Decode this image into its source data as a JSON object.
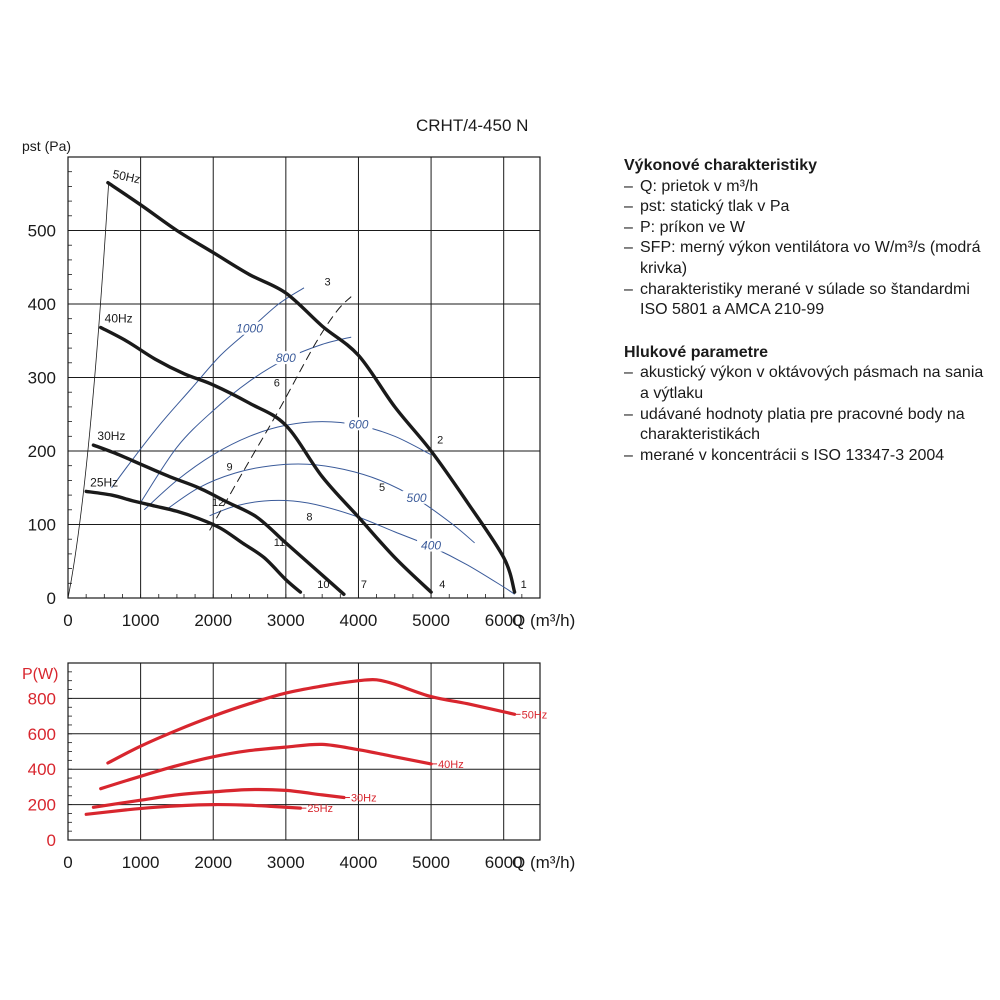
{
  "model": "CRHT/4-450 N",
  "colors": {
    "curve": "#1a1a1a",
    "sfp": "#3b5b9a",
    "power": "#d8262e",
    "grid": "#1a1a1a"
  },
  "notes": {
    "performance_title": "Výkonové charakteristiky",
    "performance_items": [
      "Q: prietok v m³/h",
      "pst: statický tlak v Pa",
      "P: príkon ve W",
      "SFP: merný výkon ventilátora vo W/m³/s (modrá krivka)",
      "charakteristiky merané v súlade so štandardmi ISO 5801 a AMCA 210-99"
    ],
    "noise_title": "Hlukové parametre",
    "noise_items": [
      "akustický výkon v oktávových pásmach na sania a výtlaku",
      "udávané hodnoty platia pre pracovné body na charakteristikách",
      "merané v koncentrácii s ISO 13347-3 2004"
    ]
  },
  "chart_data": [
    {
      "type": "line",
      "ylabel": "pst (Pa)",
      "xlabel": "Q (m³/h)",
      "xlim": [
        0,
        6500
      ],
      "ylim": [
        0,
        600
      ],
      "xticks": [
        0,
        1000,
        2000,
        3000,
        4000,
        5000,
        6000
      ],
      "yticks": [
        0,
        100,
        200,
        300,
        400,
        500
      ],
      "grid": true,
      "series": [
        {
          "name": "50Hz",
          "x": [
            550,
            1000,
            1500,
            2000,
            2500,
            3000,
            3500,
            4000,
            4500,
            5000,
            5500,
            6000,
            6150
          ],
          "y": [
            565,
            535,
            500,
            470,
            440,
            415,
            370,
            330,
            260,
            200,
            130,
            55,
            8
          ]
        },
        {
          "name": "40Hz",
          "x": [
            450,
            800,
            1200,
            1600,
            2000,
            2500,
            3000,
            3500,
            4000,
            4500,
            5000
          ],
          "y": [
            368,
            350,
            325,
            305,
            290,
            265,
            235,
            165,
            110,
            55,
            8
          ]
        },
        {
          "name": "30Hz",
          "x": [
            350,
            700,
            1000,
            1400,
            1800,
            2200,
            2600,
            3000,
            3400,
            3800
          ],
          "y": [
            208,
            195,
            182,
            165,
            150,
            130,
            110,
            75,
            40,
            5
          ]
        },
        {
          "name": "25Hz",
          "x": [
            250,
            600,
            900,
            1200,
            1500,
            1800,
            2100,
            2400,
            2700,
            3000,
            3200
          ],
          "y": [
            145,
            140,
            132,
            125,
            118,
            108,
            95,
            75,
            55,
            25,
            8
          ]
        }
      ],
      "sfp_curves": [
        {
          "label": "1000",
          "x": [
            600,
            900,
            1300,
            1700,
            2100,
            2500,
            2900,
            3250
          ],
          "y": [
            150,
            190,
            240,
            285,
            330,
            365,
            400,
            422
          ]
        },
        {
          "label": "800",
          "x": [
            1000,
            1500,
            2000,
            2500,
            3000,
            3500,
            3900
          ],
          "y": [
            130,
            205,
            255,
            295,
            325,
            345,
            355
          ]
        },
        {
          "label": "600",
          "x": [
            1050,
            1500,
            2000,
            2500,
            3000,
            3500,
            4000,
            4500,
            5000
          ],
          "y": [
            120,
            160,
            195,
            220,
            235,
            240,
            235,
            220,
            195
          ]
        },
        {
          "label": "500",
          "x": [
            1350,
            1800,
            2300,
            2800,
            3300,
            3800,
            4300,
            4800,
            5300,
            5600
          ],
          "y": [
            120,
            150,
            170,
            180,
            182,
            175,
            160,
            135,
            100,
            75
          ]
        },
        {
          "label": "400",
          "x": [
            1950,
            2300,
            2700,
            3100,
            3500,
            4000,
            4500,
            5000,
            5500,
            6000,
            6150
          ],
          "y": [
            112,
            125,
            132,
            132,
            125,
            110,
            90,
            70,
            45,
            15,
            5
          ]
        }
      ],
      "system_curve": {
        "x": [
          1950,
          2400,
          2900,
          3400,
          3700,
          3900
        ],
        "y": [
          92,
          170,
          255,
          345,
          390,
          410
        ]
      },
      "points": [
        {
          "label": "1",
          "x": 6150,
          "y": 8
        },
        {
          "label": "2",
          "x": 5000,
          "y": 205
        },
        {
          "label": "3",
          "x": 3450,
          "y": 420
        },
        {
          "label": "4",
          "x": 5030,
          "y": 8
        },
        {
          "label": "5",
          "x": 4200,
          "y": 140
        },
        {
          "label": "6",
          "x": 2750,
          "y": 282
        },
        {
          "label": "7",
          "x": 3950,
          "y": 8
        },
        {
          "label": "8",
          "x": 3200,
          "y": 100
        },
        {
          "label": "9",
          "x": 2100,
          "y": 168
        },
        {
          "label": "10",
          "x": 3350,
          "y": 8
        },
        {
          "label": "11",
          "x": 2750,
          "y": 65
        },
        {
          "label": "12",
          "x": 1900,
          "y": 120
        }
      ]
    },
    {
      "type": "line",
      "ylabel": "P(W)",
      "xlabel": "Q (m³/h)",
      "xlim": [
        0,
        6500
      ],
      "ylim": [
        0,
        1000
      ],
      "xticks": [
        0,
        1000,
        2000,
        3000,
        4000,
        5000,
        6000
      ],
      "yticks": [
        0,
        200,
        400,
        600,
        800
      ],
      "grid": true,
      "series": [
        {
          "name": "50Hz",
          "x": [
            550,
            1000,
            1500,
            2000,
            2500,
            3000,
            3500,
            4000,
            4250,
            4500,
            5000,
            5500,
            6150
          ],
          "y": [
            435,
            530,
            620,
            700,
            770,
            830,
            870,
            900,
            905,
            880,
            810,
            770,
            710
          ]
        },
        {
          "name": "40Hz",
          "x": [
            450,
            1000,
            1500,
            2000,
            2500,
            3000,
            3500,
            4000,
            4500,
            5000
          ],
          "y": [
            290,
            360,
            420,
            470,
            505,
            525,
            540,
            510,
            470,
            430
          ]
        },
        {
          "name": "30Hz",
          "x": [
            350,
            1000,
            1500,
            2000,
            2500,
            3000,
            3500,
            3800
          ],
          "y": [
            185,
            225,
            255,
            272,
            285,
            280,
            255,
            240
          ]
        },
        {
          "name": "25Hz",
          "x": [
            250,
            800,
            1200,
            1600,
            2000,
            2400,
            2800,
            3200
          ],
          "y": [
            145,
            170,
            185,
            195,
            200,
            198,
            190,
            180
          ]
        }
      ]
    }
  ]
}
